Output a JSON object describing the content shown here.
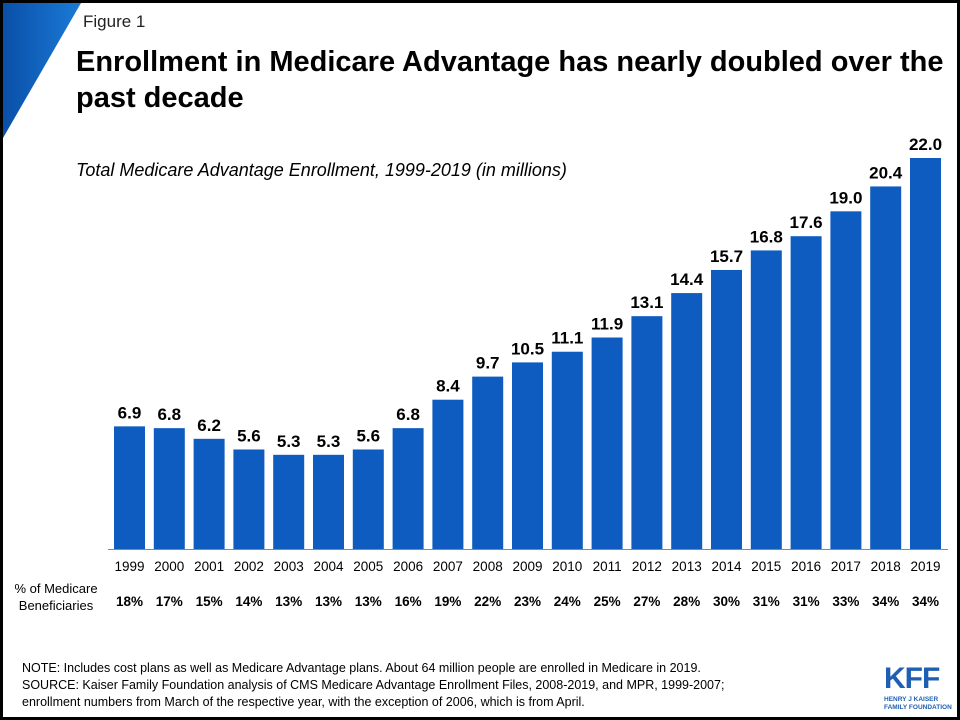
{
  "figure_label": "Figure 1",
  "title": "Enrollment in Medicare Advantage has nearly doubled over the past decade",
  "chart_data": {
    "type": "bar",
    "title": "Total Medicare Advantage Enrollment, 1999-2019 (in millions)",
    "xlabel": "",
    "ylabel": "",
    "ylim": [
      0,
      22
    ],
    "grid": false,
    "categories": [
      "1999",
      "2000",
      "2001",
      "2002",
      "2003",
      "2004",
      "2005",
      "2006",
      "2007",
      "2008",
      "2009",
      "2010",
      "2011",
      "2012",
      "2013",
      "2014",
      "2015",
      "2016",
      "2017",
      "2018",
      "2019"
    ],
    "values": [
      6.9,
      6.8,
      6.2,
      5.6,
      5.3,
      5.3,
      5.6,
      6.8,
      8.4,
      9.7,
      10.5,
      11.1,
      11.9,
      13.1,
      14.4,
      15.7,
      16.8,
      17.6,
      19.0,
      20.4,
      22.0
    ],
    "value_labels": [
      "6.9",
      "6.8",
      "6.2",
      "5.6",
      "5.3",
      "5.3",
      "5.6",
      "6.8",
      "8.4",
      "9.7",
      "10.5",
      "11.1",
      "11.9",
      "13.1",
      "14.4",
      "15.7",
      "16.8",
      "17.6",
      "19.0",
      "20.4",
      "22.0"
    ],
    "secondary_row_label": "% of Medicare Beneficiaries",
    "secondary_row": [
      "18%",
      "17%",
      "15%",
      "14%",
      "13%",
      "13%",
      "13%",
      "16%",
      "19%",
      "22%",
      "23%",
      "24%",
      "25%",
      "27%",
      "28%",
      "30%",
      "31%",
      "31%",
      "33%",
      "34%",
      "34%"
    ],
    "bar_color": "#0e5cc0"
  },
  "notes": [
    "NOTE: Includes cost plans as well as Medicare Advantage plans. About 64 million people are enrolled in Medicare in 2019.",
    "SOURCE: Kaiser Family Foundation analysis of CMS Medicare Advantage Enrollment Files, 2008-2019, and MPR, 1999-2007;",
    "enrollment numbers from March of the respective year, with the exception of 2006, which is from April."
  ],
  "logo": {
    "mark": "KFF",
    "line1": "HENRY J KAISER",
    "line2": "FAMILY FOUNDATION"
  }
}
